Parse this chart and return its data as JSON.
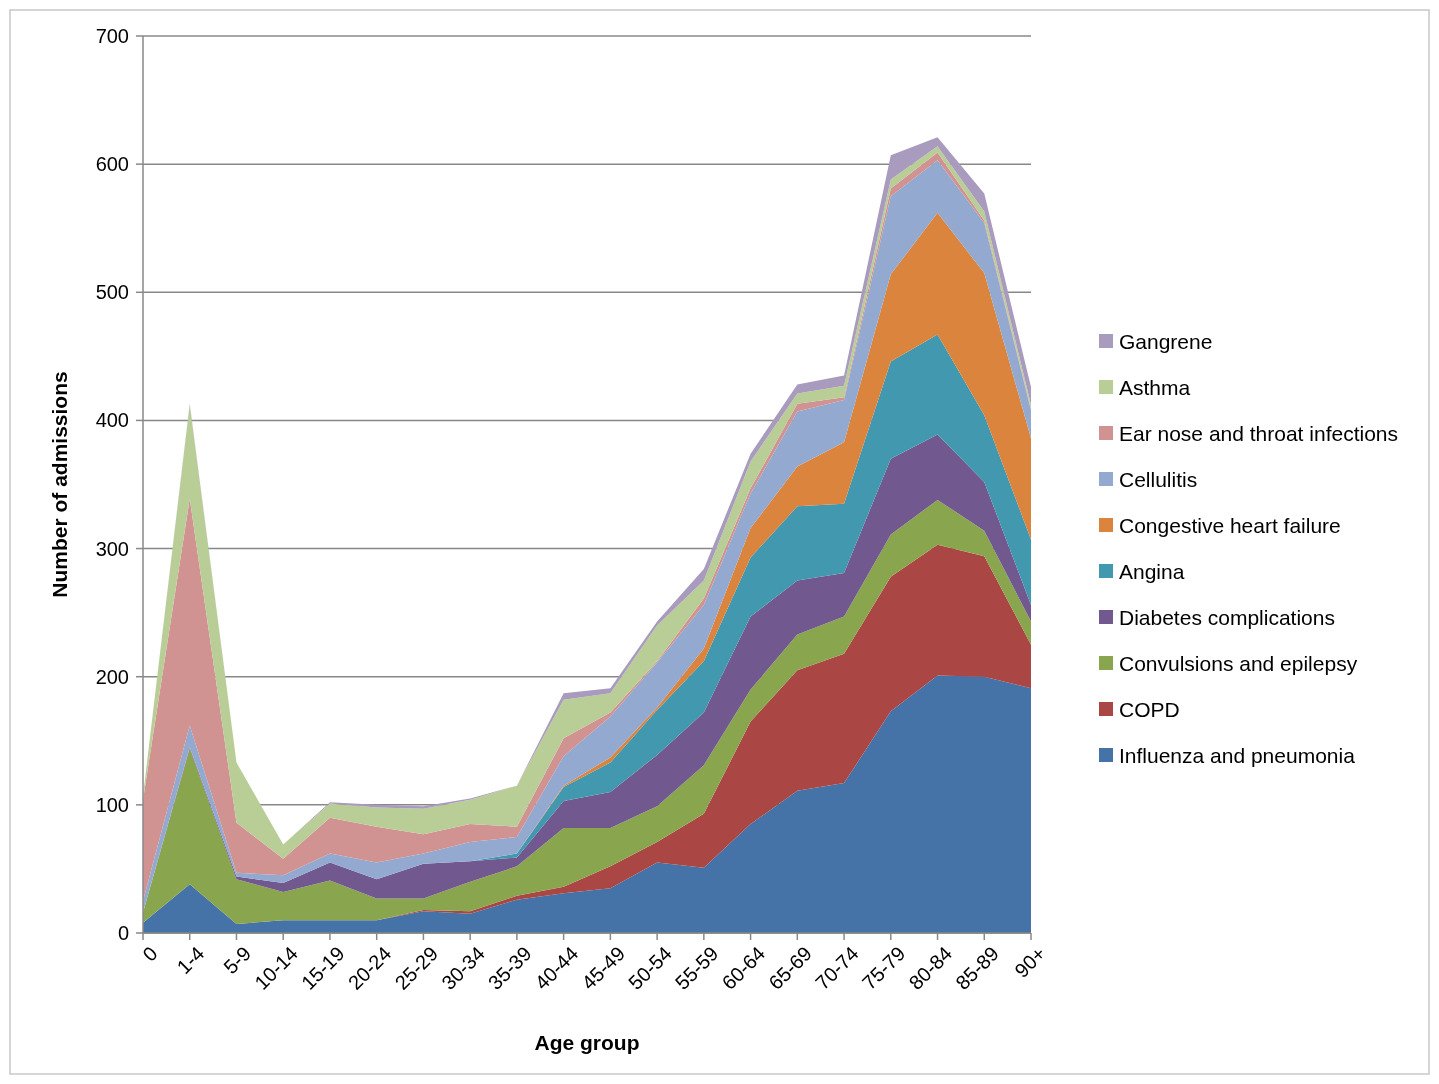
{
  "chart_data": {
    "type": "area",
    "stacked": true,
    "xlabel": "Age group",
    "ylabel": "Number of admissions",
    "categories": [
      "0",
      "1-4",
      "5-9",
      "10-14",
      "15-19",
      "20-24",
      "25-29",
      "30-34",
      "35-39",
      "40-44",
      "45-49",
      "50-54",
      "55-59",
      "60-64",
      "65-69",
      "70-74",
      "75-79",
      "80-84",
      "85-89",
      "90+"
    ],
    "series": [
      {
        "name": "Influenza and pneumonia",
        "color": "#4572a7",
        "values": [
          8,
          38,
          7,
          10,
          10,
          10,
          17,
          15,
          26,
          31,
          35,
          55,
          51,
          85,
          111,
          117,
          173,
          201,
          200,
          191
        ]
      },
      {
        "name": "COPD",
        "color": "#aa4643",
        "values": [
          0,
          0,
          0,
          0,
          0,
          0,
          1,
          2,
          3,
          5,
          17,
          16,
          42,
          80,
          94,
          101,
          105,
          102,
          94,
          34
        ]
      },
      {
        "name": "Convulsions and epilepsy",
        "color": "#89a54e",
        "values": [
          8,
          106,
          35,
          22,
          31,
          17,
          9,
          23,
          23,
          46,
          30,
          28,
          38,
          25,
          28,
          29,
          33,
          35,
          20,
          18
        ]
      },
      {
        "name": "Diabetes complications",
        "color": "#71588f",
        "values": [
          0,
          1,
          2,
          7,
          14,
          15,
          27,
          16,
          7,
          21,
          28,
          40,
          41,
          57,
          42,
          34,
          59,
          51,
          38,
          13
        ]
      },
      {
        "name": "Angina",
        "color": "#4198af",
        "values": [
          0,
          0,
          0,
          0,
          0,
          0,
          0,
          0,
          3,
          11,
          23,
          35,
          40,
          46,
          58,
          54,
          76,
          78,
          52,
          51
        ]
      },
      {
        "name": "Congestive heart failure",
        "color": "#db843d",
        "values": [
          0,
          0,
          0,
          0,
          0,
          0,
          0,
          0,
          0,
          1,
          4,
          2,
          10,
          23,
          31,
          48,
          68,
          95,
          111,
          79
        ]
      },
      {
        "name": "Cellulitis",
        "color": "#93a9cf",
        "values": [
          9,
          17,
          3,
          6,
          7,
          13,
          8,
          15,
          13,
          23,
          32,
          35,
          34,
          27,
          43,
          33,
          61,
          41,
          39,
          22
        ]
      },
      {
        "name": "Ear nose and throat infections",
        "color": "#d19392",
        "values": [
          79,
          177,
          39,
          13,
          28,
          28,
          15,
          14,
          8,
          14,
          3,
          1,
          5,
          4,
          6,
          2,
          6,
          6,
          2,
          1
        ]
      },
      {
        "name": "Asthma",
        "color": "#b9cd96",
        "values": [
          3,
          73,
          47,
          11,
          11,
          15,
          20,
          19,
          32,
          30,
          15,
          28,
          14,
          21,
          8,
          9,
          7,
          5,
          7,
          3
        ]
      },
      {
        "name": "Gangrene",
        "color": "#a99bbd",
        "values": [
          0,
          1,
          0,
          0,
          1,
          2,
          2,
          1,
          0,
          5,
          4,
          3,
          9,
          6,
          7,
          8,
          19,
          7,
          14,
          14
        ]
      }
    ],
    "ylim": [
      0,
      700
    ],
    "yticks": [
      0,
      100,
      200,
      300,
      400,
      500,
      600,
      700
    ],
    "grid": "y",
    "legend": "right"
  }
}
